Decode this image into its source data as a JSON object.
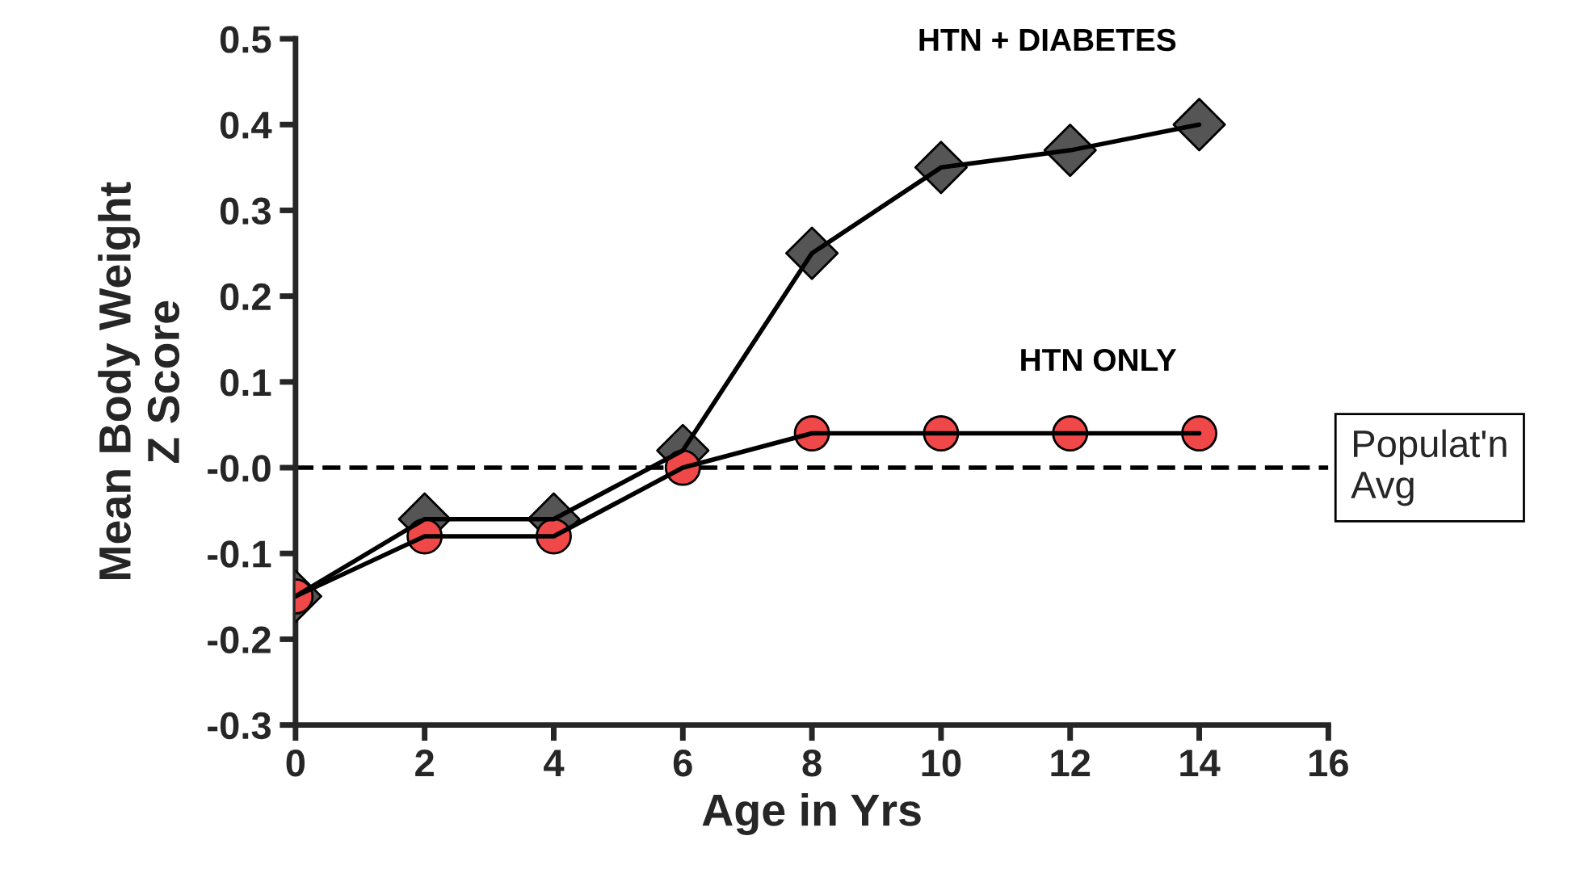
{
  "chart_data": {
    "type": "line",
    "xlabel": "Age in Yrs",
    "ylabel": "Mean Body Weight\nZ Score",
    "x": [
      0,
      2,
      4,
      6,
      8,
      10,
      12,
      14
    ],
    "series": [
      {
        "name": "HTN + DIABETES",
        "color": "#555555",
        "marker": "diamond",
        "values": [
          -0.15,
          -0.06,
          -0.06,
          0.02,
          0.25,
          0.35,
          0.37,
          0.4
        ]
      },
      {
        "name": "HTN ONLY",
        "color": "#f04848",
        "marker": "circle",
        "values": [
          -0.15,
          -0.08,
          -0.08,
          0.0,
          0.04,
          0.04,
          0.04,
          0.04
        ]
      }
    ],
    "xlim": [
      0,
      16
    ],
    "xticks": [
      0,
      2,
      4,
      6,
      8,
      10,
      12,
      14,
      16
    ],
    "ylim": [
      -0.3,
      0.5
    ],
    "yticks": [
      -0.3,
      -0.2,
      -0.1,
      {
        "value": 0,
        "label": "-0.0"
      },
      0.1,
      0.2,
      0.3,
      0.4,
      0.5
    ],
    "ref_lines": [
      {
        "axis": "y",
        "value": 0,
        "label": "Populat'n\nAvg",
        "line_style": "dashed",
        "color": "#000000"
      }
    ],
    "grid": false,
    "legend": false
  }
}
